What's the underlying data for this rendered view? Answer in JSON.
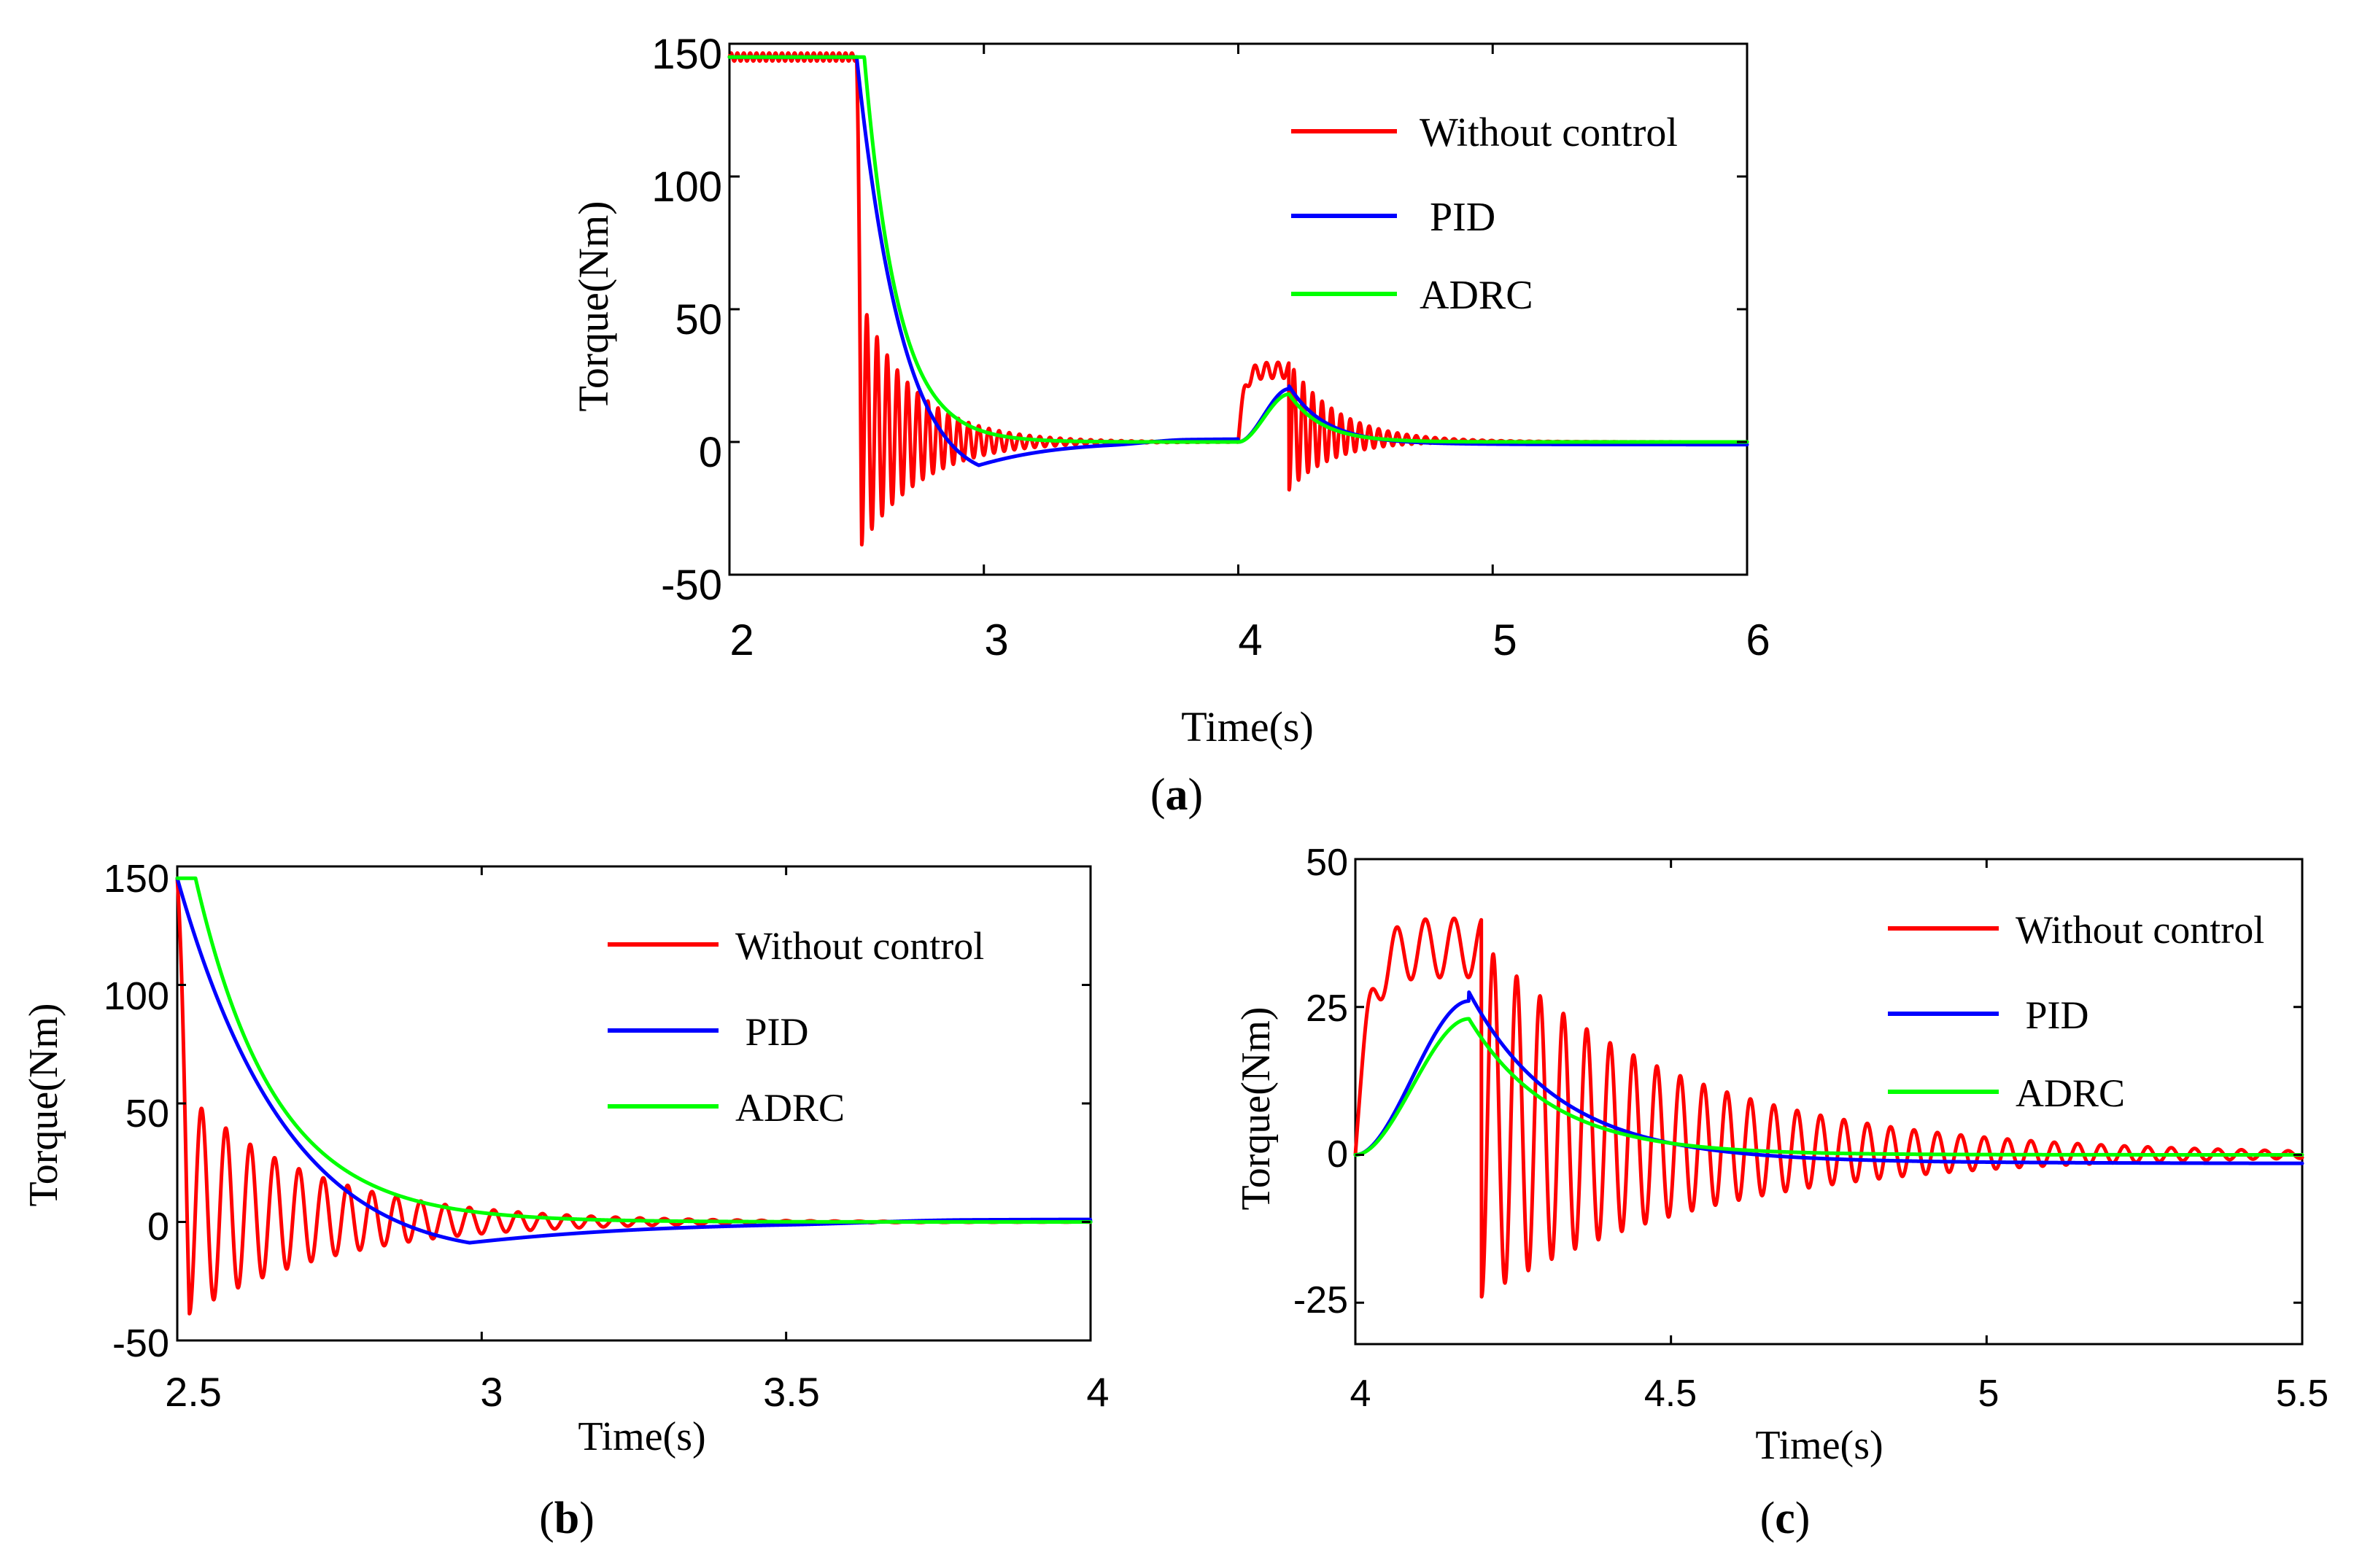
{
  "chart_data": [
    {
      "id": "a",
      "type": "line",
      "panel_label": "a",
      "xlabel": "Time(s)",
      "ylabel": "Torque(Nm)",
      "xlim": [
        2,
        6
      ],
      "ylim": [
        -50,
        150
      ],
      "xticks": [
        2,
        3,
        4,
        5,
        6
      ],
      "xtick_labels": [
        "2",
        "3",
        "4",
        "5",
        "6"
      ],
      "yticks": [
        -50,
        0,
        50,
        100,
        150
      ],
      "ytick_labels": [
        "-50",
        "0",
        "50",
        "100",
        "150"
      ],
      "legend": [
        "Without control",
        " PID",
        "ADRC"
      ],
      "legend_position": "top-right",
      "series": [
        {
          "name": "Without control",
          "color": "#ff0000",
          "model": "nocontrol",
          "start": 145,
          "drop_t": 2.5,
          "amp1": 50,
          "decay1": 4.5,
          "freq1": 25,
          "bump_start": 4.0,
          "bump_end": 4.2,
          "bump_level": 27,
          "bump_ripple": 3,
          "amp2": 24,
          "decay2": 5.5,
          "freq2": 27
        },
        {
          "name": " PID",
          "color": "#0000ff",
          "model": "pid",
          "start": 145,
          "drop_t": 2.5,
          "tau": 0.16,
          "under": -16,
          "under_t": 2.98,
          "bump_start": 4.0,
          "bump_peak_t": 4.2,
          "bump_peak": 20,
          "tail": -1
        },
        {
          "name": "ADRC",
          "color": "#00ff00",
          "model": "adrc",
          "start": 145,
          "drop_t": 2.5,
          "tau": 0.13,
          "bump_start": 4.0,
          "bump_peak_t": 4.2,
          "bump_peak": 18
        }
      ]
    },
    {
      "id": "b",
      "type": "line",
      "panel_label": "b",
      "xlabel": "Time(s)",
      "ylabel": "Torque(Nm)",
      "xlim": [
        2.5,
        4
      ],
      "ylim": [
        -50,
        150
      ],
      "xticks": [
        2.5,
        3,
        3.5,
        4
      ],
      "xtick_labels": [
        "2.5",
        "3",
        "3.5",
        "4"
      ],
      "yticks": [
        -50,
        0,
        50,
        100,
        150
      ],
      "ytick_labels": [
        "-50",
        "0",
        "50",
        "100",
        "150"
      ],
      "legend": [
        "Without control",
        " PID",
        "ADRC"
      ],
      "legend_position": "top-right",
      "series": [
        {
          "name": "Without control",
          "color": "#ff0000",
          "model": "nocontrol",
          "start": 145,
          "drop_t": 2.5,
          "amp1": 50,
          "decay1": 4.5,
          "freq1": 25,
          "bump_start": 4.0,
          "bump_end": 4.2,
          "bump_level": 27,
          "bump_ripple": 3,
          "amp2": 24,
          "decay2": 5.5,
          "freq2": 27
        },
        {
          "name": " PID",
          "color": "#0000ff",
          "model": "pid",
          "start": 145,
          "drop_t": 2.5,
          "tau": 0.16,
          "under": -16,
          "under_t": 2.98,
          "bump_start": 4.0,
          "bump_peak_t": 4.2,
          "bump_peak": 20,
          "tail": -1
        },
        {
          "name": "ADRC",
          "color": "#00ff00",
          "model": "adrc",
          "start": 145,
          "drop_t": 2.5,
          "tau": 0.13,
          "bump_start": 4.0,
          "bump_peak_t": 4.2,
          "bump_peak": 18
        }
      ]
    },
    {
      "id": "c",
      "type": "line",
      "panel_label": "c",
      "xlabel": "Time(s)",
      "ylabel": "Torque(Nm)",
      "xlim": [
        4,
        5.5
      ],
      "ylim": [
        -32,
        50
      ],
      "xticks": [
        4,
        4.5,
        5,
        5.5
      ],
      "xtick_labels": [
        "4",
        "4.5",
        "5",
        "5.5"
      ],
      "yticks": [
        -25,
        0,
        25,
        50
      ],
      "ytick_labels": [
        "-25",
        "0",
        "25",
        "50"
      ],
      "legend": [
        "Without control",
        " PID",
        "ADRC"
      ],
      "legend_position": "top-right",
      "series": [
        {
          "name": "Without control",
          "color": "#ff0000",
          "model": "nocontrol_zoom",
          "bump_start": 4.0,
          "bump_end": 4.2,
          "bump_level": 35,
          "bump_ripple": 5,
          "amp2": 30,
          "decay2": 3.0,
          "freq2": 27
        },
        {
          "name": " PID",
          "color": "#0000ff",
          "model": "pid_zoom",
          "bump_start": 4.0,
          "bump_peak_t": 4.18,
          "bump_peak": 26,
          "tail": -1.5
        },
        {
          "name": "ADRC",
          "color": "#00ff00",
          "model": "adrc_zoom",
          "bump_start": 4.0,
          "bump_peak_t": 4.18,
          "bump_peak": 23
        }
      ]
    }
  ]
}
